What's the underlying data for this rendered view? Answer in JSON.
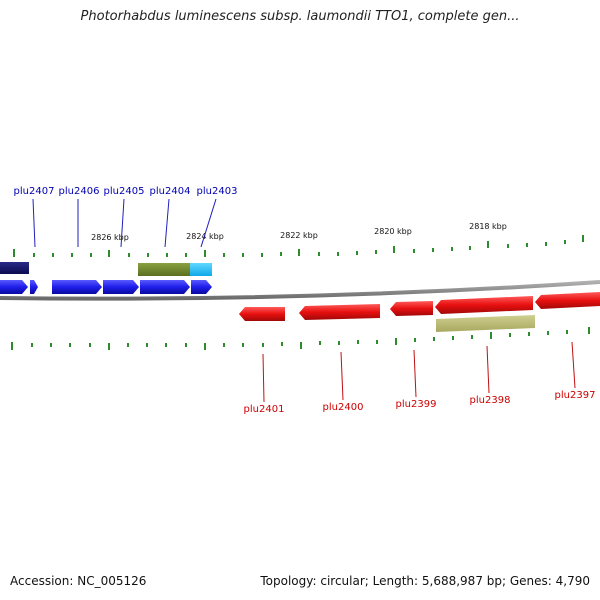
{
  "title": "Photorhabdus luminescens subsp. laumondii TTO1, complete gen...",
  "footer": {
    "accession": "Accession: NC_005126",
    "topology": "Topology: circular; Length: 5,688,987 bp; Genes: 4,790"
  },
  "colors": {
    "backbone": "#8a8a8a",
    "tick": "#2e8b2e",
    "forward_gene": "#1e1eea",
    "reverse_gene": "#e81010",
    "forward_label": "#0000b0",
    "reverse_label": "#cc0000"
  },
  "kbp_labels": [
    "2826 kbp",
    "2824 kbp",
    "2822 kbp",
    "2820 kbp",
    "2818 kbp"
  ],
  "forward_labels": [
    "plu2407",
    "plu2406",
    "plu2405",
    "plu2404",
    "plu2403"
  ],
  "reverse_labels": [
    "plu2401",
    "plu2400",
    "plu2399",
    "plu2398",
    "plu2397"
  ]
}
